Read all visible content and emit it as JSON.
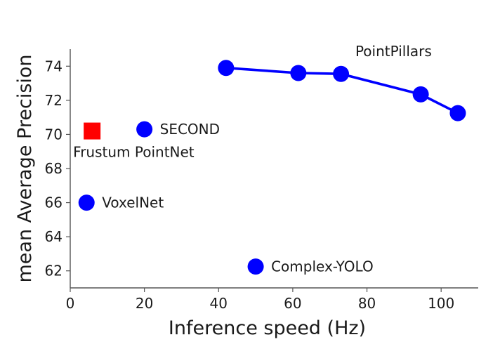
{
  "chart_data": {
    "type": "scatter",
    "xlabel": "Inference speed (Hz)",
    "ylabel": "mean Average Precision",
    "xlim": [
      0,
      110
    ],
    "ylim": [
      61,
      75
    ],
    "x_ticks": [
      0,
      20,
      40,
      60,
      80,
      100
    ],
    "y_ticks": [
      62,
      64,
      66,
      68,
      70,
      72,
      74
    ],
    "grid": false,
    "colors": {
      "pointpillars": "#0000ff",
      "points": "#0000ff",
      "frustum": "#ff0000"
    },
    "series": [
      {
        "name": "PointPillars",
        "marker": "circle",
        "line": true,
        "points": [
          {
            "x": 42,
            "y": 73.9
          },
          {
            "x": 61.5,
            "y": 73.6
          },
          {
            "x": 73,
            "y": 73.55
          },
          {
            "x": 94.5,
            "y": 72.35
          },
          {
            "x": 104.5,
            "y": 71.25
          }
        ]
      },
      {
        "name": "SECOND",
        "marker": "circle",
        "line": false,
        "points": [
          {
            "x": 20,
            "y": 70.3
          }
        ]
      },
      {
        "name": "VoxelNet",
        "marker": "circle",
        "line": false,
        "points": [
          {
            "x": 4.4,
            "y": 66.0
          }
        ]
      },
      {
        "name": "Complex-YOLO",
        "marker": "circle",
        "line": false,
        "points": [
          {
            "x": 50,
            "y": 62.25
          }
        ]
      },
      {
        "name": "Frustum PointNet",
        "marker": "square",
        "line": false,
        "points": [
          {
            "x": 5.9,
            "y": 70.2
          }
        ]
      }
    ],
    "annotations": [
      {
        "text": "PointPillars",
        "series": "PointPillars",
        "placement": "above-right"
      },
      {
        "text": "SECOND",
        "series": "SECOND",
        "placement": "right"
      },
      {
        "text": "VoxelNet",
        "series": "VoxelNet",
        "placement": "right"
      },
      {
        "text": "Complex-YOLO",
        "series": "Complex-YOLO",
        "placement": "right"
      },
      {
        "text": "Frustum PointNet",
        "series": "Frustum PointNet",
        "placement": "below"
      }
    ]
  }
}
